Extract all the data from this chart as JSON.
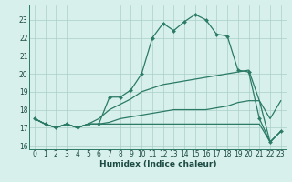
{
  "xlabel": "Humidex (Indice chaleur)",
  "x_values": [
    0,
    1,
    2,
    3,
    4,
    5,
    6,
    7,
    8,
    9,
    10,
    11,
    12,
    13,
    14,
    15,
    16,
    17,
    18,
    19,
    20,
    21,
    22,
    23
  ],
  "line1": [
    17.5,
    17.2,
    17.0,
    17.2,
    17.0,
    17.2,
    17.2,
    18.7,
    18.7,
    19.1,
    20.0,
    22.0,
    22.8,
    22.4,
    22.9,
    23.3,
    23.0,
    22.2,
    22.1,
    20.2,
    20.1,
    17.5,
    16.2,
    16.8
  ],
  "line2": [
    17.5,
    17.2,
    17.0,
    17.2,
    17.0,
    17.2,
    17.5,
    18.0,
    18.3,
    18.6,
    19.0,
    19.2,
    19.4,
    19.5,
    19.6,
    19.7,
    19.8,
    19.9,
    20.0,
    20.1,
    20.2,
    18.5,
    17.5,
    18.5
  ],
  "line3": [
    17.5,
    17.2,
    17.0,
    17.2,
    17.0,
    17.2,
    17.2,
    17.3,
    17.5,
    17.6,
    17.7,
    17.8,
    17.9,
    18.0,
    18.0,
    18.0,
    18.0,
    18.1,
    18.2,
    18.4,
    18.5,
    18.5,
    16.2,
    16.8
  ],
  "line4": [
    17.5,
    17.2,
    17.0,
    17.2,
    17.0,
    17.2,
    17.2,
    17.2,
    17.2,
    17.2,
    17.2,
    17.2,
    17.2,
    17.2,
    17.2,
    17.2,
    17.2,
    17.2,
    17.2,
    17.2,
    17.2,
    17.2,
    16.2,
    16.8
  ],
  "line_color": "#2a7a65",
  "bg_color": "#d8f0ec",
  "grid_color": "#aacfc8",
  "ylim": [
    15.8,
    23.8
  ],
  "xlim": [
    -0.5,
    23.5
  ],
  "yticks": [
    16,
    17,
    18,
    19,
    20,
    21,
    22,
    23
  ],
  "xticks": [
    0,
    1,
    2,
    3,
    4,
    5,
    6,
    7,
    8,
    9,
    10,
    11,
    12,
    13,
    14,
    15,
    16,
    17,
    18,
    19,
    20,
    21,
    22,
    23
  ],
  "xlabel_fontsize": 6.5,
  "tick_fontsize": 5.5,
  "linewidth": 0.9,
  "markersize": 2.2
}
